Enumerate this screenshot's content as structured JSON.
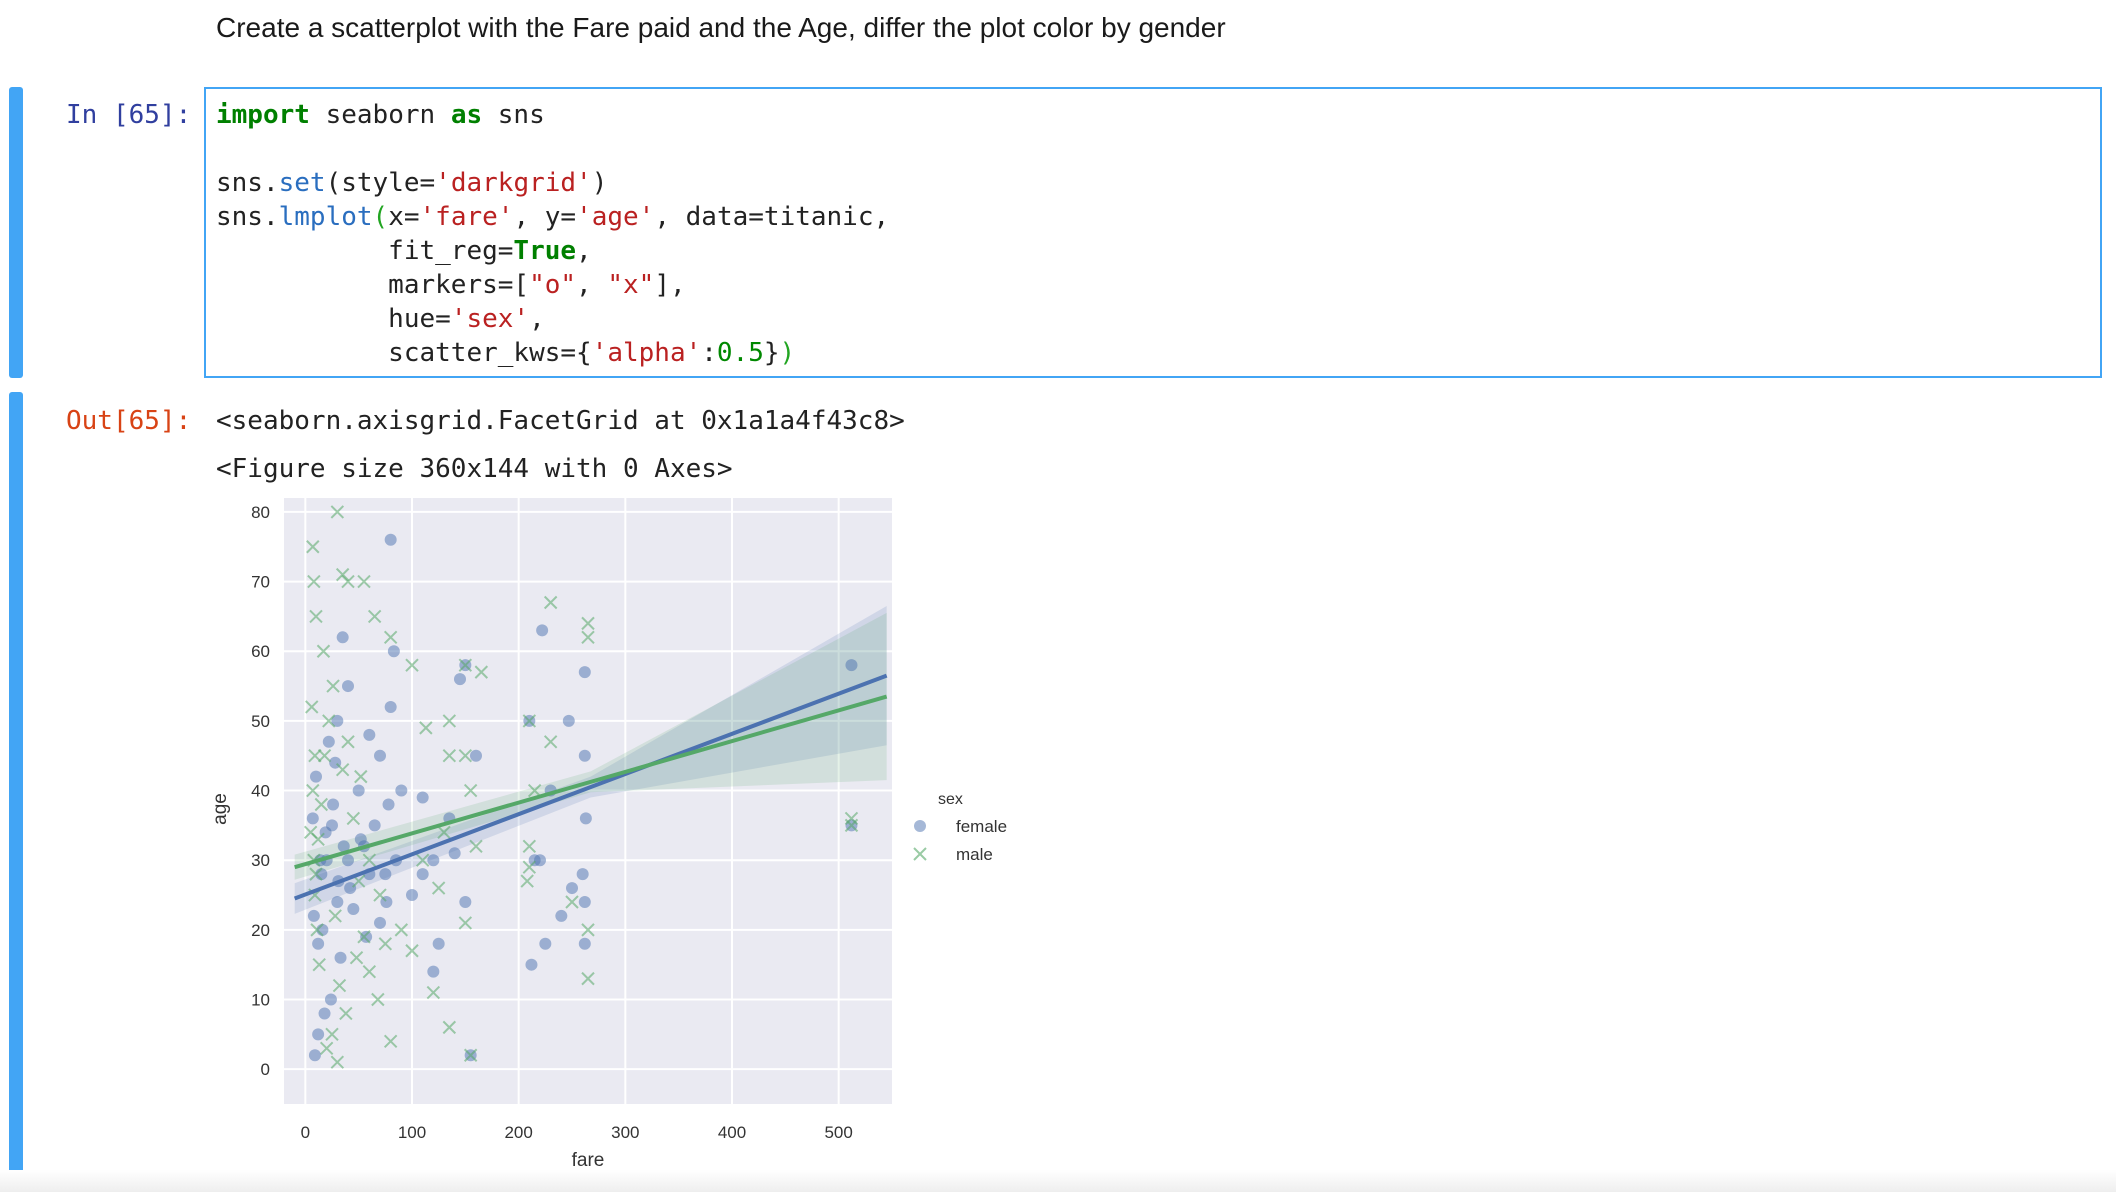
{
  "markdown": {
    "text": "Create a scatterplot with the Fare paid and the Age, differ the plot color by gender"
  },
  "input_cell": {
    "prompt": "In [65]:",
    "code": {
      "l1_kw1": "import",
      "l1_mod": " seaborn ",
      "l1_kw2": "as",
      "l1_alias": " sns",
      "l3_a": "sns.",
      "l3_fn": "set",
      "l3_b": "(style=",
      "l3_str": "'darkgrid'",
      "l3_c": ")",
      "l4_a": "sns.",
      "l4_fn": "lmplot",
      "l4_p": "(",
      "l4_b": "x=",
      "l4_s1": "'fare'",
      "l4_c": ", y=",
      "l4_s2": "'age'",
      "l4_d": ", data=titanic,",
      "l5_a": "           fit_reg=",
      "l5_kw": "True",
      "l5_b": ",",
      "l6_a": "           markers=[",
      "l6_s1": "\"o\"",
      "l6_b": ", ",
      "l6_s2": "\"x\"",
      "l6_c": "],",
      "l7_a": "           hue=",
      "l7_s": "'sex'",
      "l7_b": ",",
      "l8_a": "           scatter_kws={",
      "l8_s": "'alpha'",
      "l8_b": ":",
      "l8_n": "0.5",
      "l8_c": "}",
      "l8_p": ")"
    }
  },
  "output_cell": {
    "prompt": "Out[65]:",
    "repr": "<seaborn.axisgrid.FacetGrid at 0x1a1a4f43c8>",
    "figure_text": "<Figure size 360x144 with 0 Axes>"
  },
  "colors": {
    "female": "#4c72b0",
    "male": "#55a868",
    "axes_bg": "#eaeaf2",
    "cell_bar": "#42a5f5"
  },
  "chart_data": {
    "type": "scatter",
    "xlabel": "fare",
    "ylabel": "age",
    "xlim": [
      -20,
      550
    ],
    "ylim": [
      -5,
      82
    ],
    "xticks": [
      0,
      100,
      200,
      300,
      400,
      500
    ],
    "yticks": [
      0,
      10,
      20,
      30,
      40,
      50,
      60,
      70,
      80
    ],
    "grid": true,
    "legend": {
      "title": "sex",
      "placement": "right",
      "entries": [
        "female",
        "male"
      ]
    },
    "series": [
      {
        "name": "female",
        "marker": "o",
        "color": "#4c72b0",
        "points": [
          [
            8,
            22
          ],
          [
            12,
            18
          ],
          [
            15,
            28
          ],
          [
            20,
            30
          ],
          [
            25,
            35
          ],
          [
            30,
            24
          ],
          [
            7,
            36
          ],
          [
            10,
            42
          ],
          [
            26,
            38
          ],
          [
            14,
            30
          ],
          [
            31,
            27
          ],
          [
            50,
            40
          ],
          [
            55,
            32
          ],
          [
            60,
            28
          ],
          [
            70,
            45
          ],
          [
            76,
            24
          ],
          [
            78,
            38
          ],
          [
            80,
            52
          ],
          [
            83,
            60
          ],
          [
            85,
            30
          ],
          [
            90,
            40
          ],
          [
            80,
            76
          ],
          [
            60,
            48
          ],
          [
            52,
            33
          ],
          [
            150,
            58
          ],
          [
            145,
            56
          ],
          [
            150,
            24
          ],
          [
            160,
            45
          ],
          [
            110,
            39
          ],
          [
            120,
            30
          ],
          [
            210,
            50
          ],
          [
            222,
            63
          ],
          [
            225,
            18
          ],
          [
            212,
            15
          ],
          [
            230,
            40
          ],
          [
            247,
            50
          ],
          [
            262,
            57
          ],
          [
            262,
            45
          ],
          [
            263,
            36
          ],
          [
            262,
            24
          ],
          [
            262,
            18
          ],
          [
            260,
            28
          ],
          [
            512,
            58
          ],
          [
            512,
            35
          ],
          [
            30,
            50
          ],
          [
            40,
            55
          ],
          [
            35,
            62
          ],
          [
            19,
            34
          ],
          [
            16,
            20
          ],
          [
            28,
            44
          ],
          [
            33,
            16
          ],
          [
            24,
            10
          ],
          [
            12,
            5
          ],
          [
            9,
            2
          ],
          [
            18,
            8
          ],
          [
            40,
            30
          ],
          [
            45,
            23
          ],
          [
            65,
            35
          ],
          [
            70,
            21
          ],
          [
            100,
            25
          ],
          [
            110,
            28
          ],
          [
            135,
            36
          ],
          [
            140,
            31
          ],
          [
            155,
            2
          ],
          [
            120,
            14
          ],
          [
            125,
            18
          ],
          [
            215,
            30
          ],
          [
            220,
            30
          ],
          [
            250,
            26
          ],
          [
            240,
            22
          ],
          [
            36,
            32
          ],
          [
            42,
            26
          ],
          [
            22,
            47
          ],
          [
            57,
            19
          ],
          [
            75,
            28
          ]
        ],
        "regression": {
          "x": [
            -10,
            545
          ],
          "y": [
            24.5,
            56.5
          ]
        }
      },
      {
        "name": "male",
        "marker": "x",
        "color": "#55a868",
        "points": [
          [
            7,
            75
          ],
          [
            8,
            70
          ],
          [
            10,
            65
          ],
          [
            30,
            80
          ],
          [
            40,
            70
          ],
          [
            35,
            71
          ],
          [
            55,
            70
          ],
          [
            65,
            65
          ],
          [
            80,
            62
          ],
          [
            100,
            58
          ],
          [
            150,
            58
          ],
          [
            165,
            57
          ],
          [
            113,
            49
          ],
          [
            135,
            50
          ],
          [
            135,
            45
          ],
          [
            150,
            45
          ],
          [
            230,
            67
          ],
          [
            265,
            64
          ],
          [
            265,
            62
          ],
          [
            210,
            50
          ],
          [
            230,
            47
          ],
          [
            215,
            40
          ],
          [
            210,
            32
          ],
          [
            210,
            29
          ],
          [
            208,
            27
          ],
          [
            250,
            24
          ],
          [
            265,
            20
          ],
          [
            265,
            13
          ],
          [
            512,
            36
          ],
          [
            512,
            35
          ],
          [
            120,
            11
          ],
          [
            135,
            6
          ],
          [
            80,
            4
          ],
          [
            155,
            2
          ],
          [
            20,
            3
          ],
          [
            30,
            1
          ],
          [
            10,
            28
          ],
          [
            12,
            33
          ],
          [
            15,
            38
          ],
          [
            18,
            45
          ],
          [
            22,
            50
          ],
          [
            26,
            55
          ],
          [
            8,
            30
          ],
          [
            9,
            25
          ],
          [
            11,
            20
          ],
          [
            13,
            15
          ],
          [
            7,
            40
          ],
          [
            9,
            45
          ],
          [
            6,
            52
          ],
          [
            17,
            60
          ],
          [
            5,
            34
          ],
          [
            50,
            27
          ],
          [
            60,
            30
          ],
          [
            45,
            36
          ],
          [
            55,
            19
          ],
          [
            70,
            25
          ],
          [
            75,
            18
          ],
          [
            90,
            20
          ],
          [
            100,
            17
          ],
          [
            110,
            30
          ],
          [
            125,
            26
          ],
          [
            130,
            34
          ],
          [
            150,
            21
          ],
          [
            155,
            40
          ],
          [
            160,
            32
          ],
          [
            40,
            47
          ],
          [
            35,
            43
          ],
          [
            52,
            42
          ],
          [
            28,
            22
          ],
          [
            32,
            12
          ],
          [
            38,
            8
          ],
          [
            25,
            5
          ],
          [
            60,
            14
          ],
          [
            68,
            10
          ],
          [
            48,
            16
          ]
        ],
        "regression": {
          "x": [
            -10,
            545
          ],
          "y": [
            29,
            53.5
          ]
        }
      }
    ]
  }
}
